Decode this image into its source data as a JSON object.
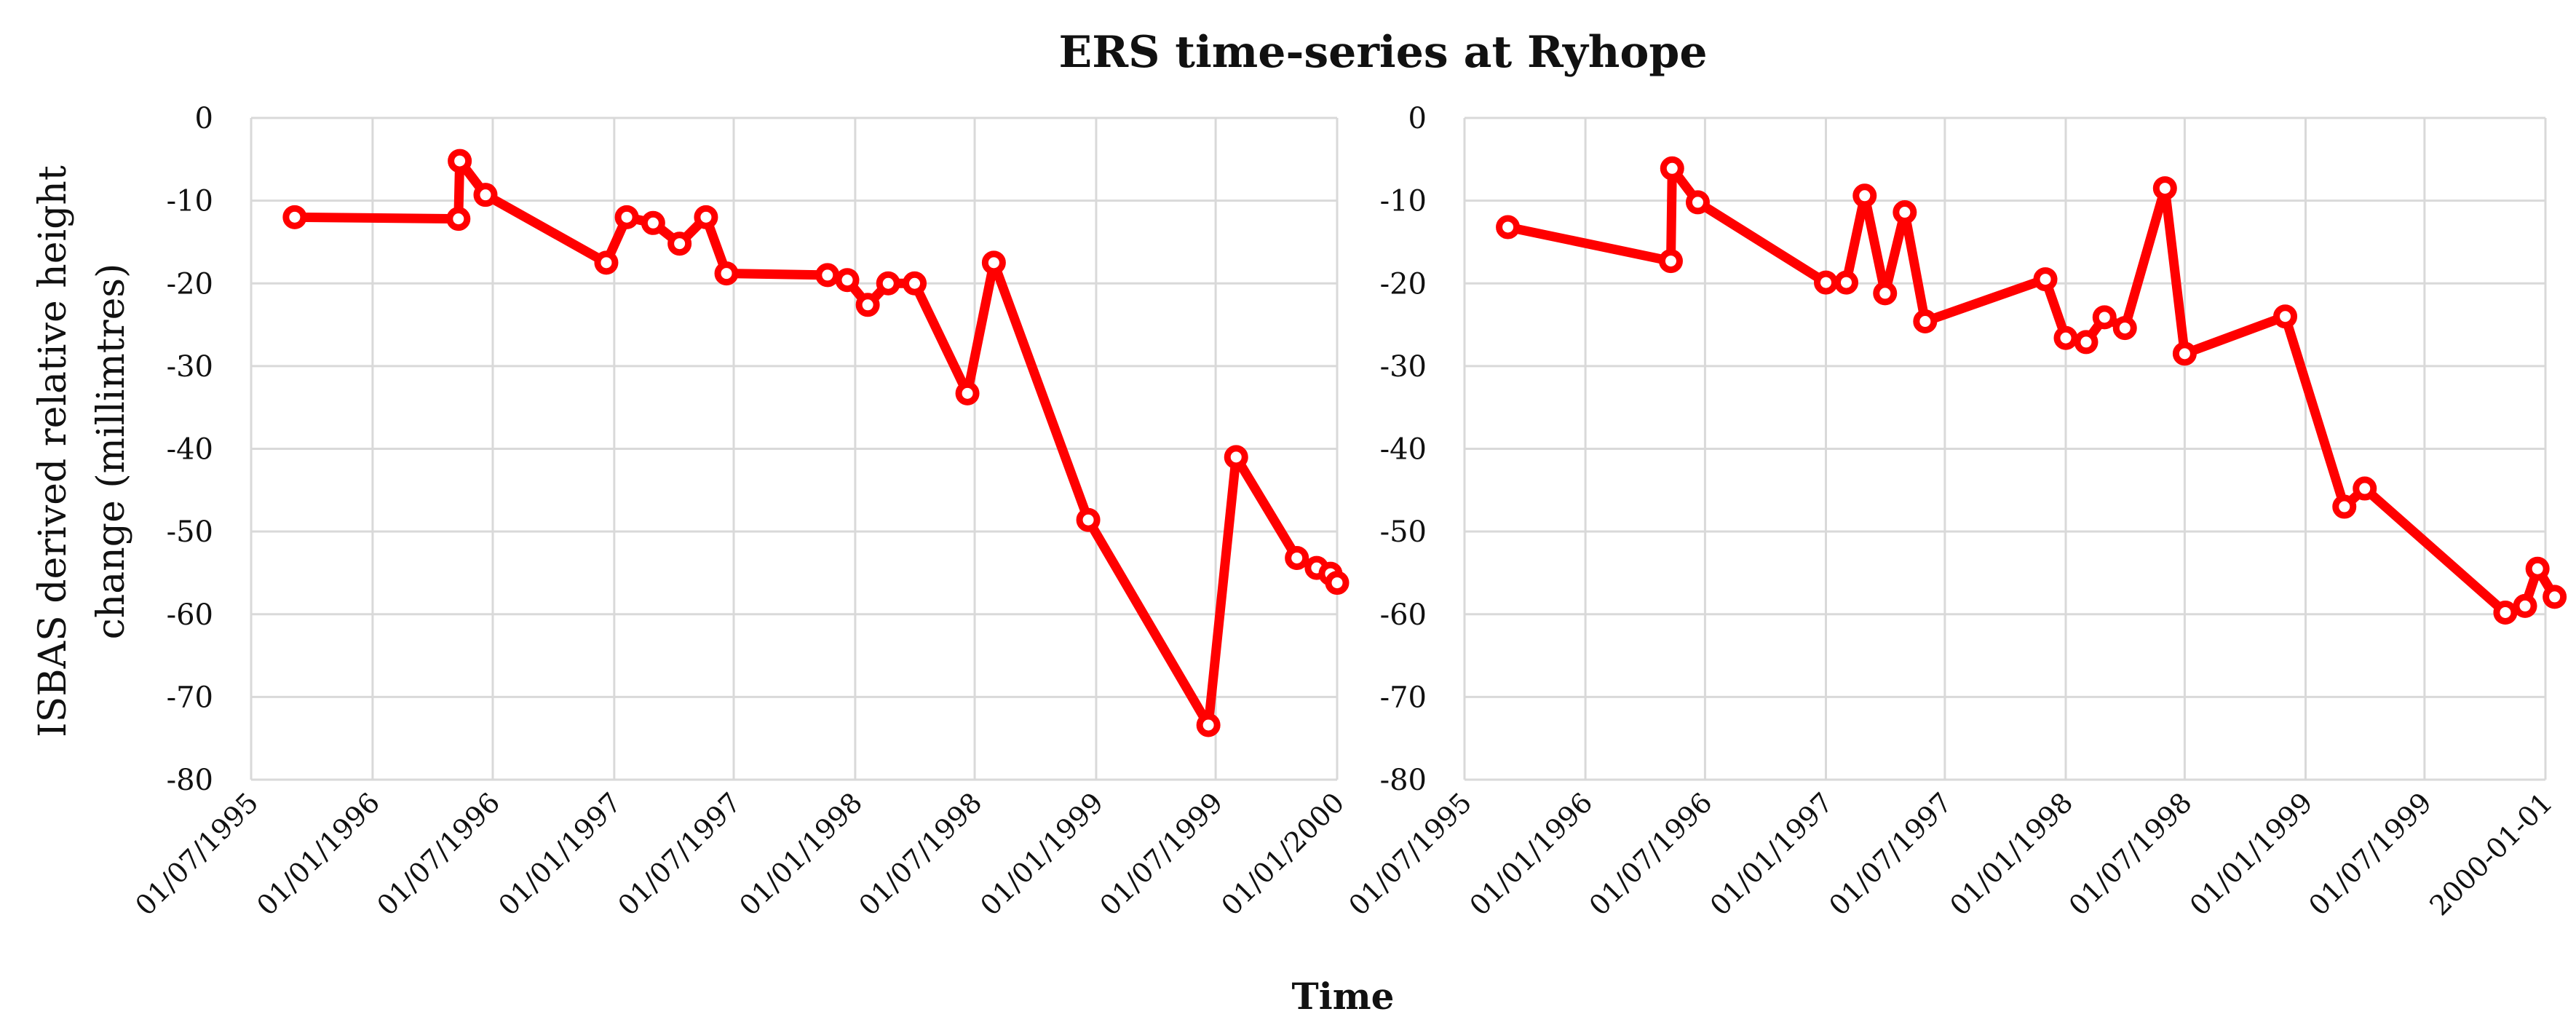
{
  "title": "ERS time-series at Ryhope",
  "xlabel": "Time",
  "ylabel_line1": "ISBAS derived relative height",
  "ylabel_line2": "change (millimtres)",
  "colors": {
    "series": "#ff0000",
    "grid": "#d9d9d9"
  },
  "chart_data": [
    {
      "type": "line",
      "xlabel": "Time",
      "ylabel": "ISBAS derived relative height change (millimtres)",
      "xlim": [
        "1995-07-01",
        "2000-01-01"
      ],
      "ylim": [
        -80,
        0
      ],
      "ytick_step": 10,
      "xticks": [
        "1995-07-01",
        "1996-01-01",
        "1996-07-01",
        "1997-01-01",
        "1997-07-01",
        "1998-01-01",
        "1998-07-01",
        "1999-01-01",
        "1999-07-01",
        "2000-01-01"
      ],
      "xtick_labels": [
        "01/07/1995",
        "01/01/1996",
        "01/07/1996",
        "01/01/1997",
        "01/07/1997",
        "01/01/1998",
        "01/07/1998",
        "01/01/1999",
        "01/07/1999",
        "01/01/2000"
      ],
      "grid": true,
      "series": [
        {
          "points": [
            [
              "1995-09-05",
              -12.0
            ],
            [
              "1996-05-10",
              -12.2
            ],
            [
              "1996-05-12",
              -5.2
            ],
            [
              "1996-06-20",
              -9.3
            ],
            [
              "1996-12-20",
              -17.5
            ],
            [
              "1997-01-20",
              -12.0
            ],
            [
              "1997-03-01",
              -12.7
            ],
            [
              "1997-04-10",
              -15.2
            ],
            [
              "1997-05-20",
              -12.0
            ],
            [
              "1997-06-20",
              -18.8
            ],
            [
              "1997-11-20",
              -19.0
            ],
            [
              "1997-12-20",
              -19.6
            ],
            [
              "1998-01-20",
              -22.6
            ],
            [
              "1998-02-20",
              -20.0
            ],
            [
              "1998-04-01",
              -20.0
            ],
            [
              "1998-06-20",
              -33.3
            ],
            [
              "1998-07-30",
              -17.5
            ],
            [
              "1998-12-20",
              -48.6
            ],
            [
              "1999-06-20",
              -73.4
            ],
            [
              "1999-08-01",
              -41.0
            ],
            [
              "1999-11-01",
              -53.2
            ],
            [
              "1999-12-01",
              -54.4
            ],
            [
              "1999-12-22",
              -55.1
            ],
            [
              "2000-01-01",
              -56.2
            ]
          ]
        }
      ]
    },
    {
      "type": "line",
      "xlabel": "Time",
      "ylabel": "",
      "xlim": [
        "1995-07-01",
        "2000-01-01"
      ],
      "ylim": [
        -80,
        0
      ],
      "ytick_step": 10,
      "xticks": [
        "1995-07-01",
        "1996-01-01",
        "1996-07-01",
        "1997-01-01",
        "1997-07-01",
        "1998-01-01",
        "1998-07-01",
        "1999-01-01",
        "1999-07-01",
        "2000-01-01"
      ],
      "xtick_labels": [
        "01/07/1995",
        "01/01/1996",
        "01/07/1996",
        "01/01/1997",
        "01/07/1997",
        "01/01/1998",
        "01/07/1998",
        "01/01/1999",
        "01/07/1999",
        "2000-01-01"
      ],
      "grid": true,
      "series": [
        {
          "points": [
            [
              "1995-09-05",
              -13.2
            ],
            [
              "1996-05-10",
              -17.3
            ],
            [
              "1996-05-12",
              -6.1
            ],
            [
              "1996-06-20",
              -10.2
            ],
            [
              "1997-01-01",
              -19.9
            ],
            [
              "1997-02-01",
              -19.9
            ],
            [
              "1997-03-01",
              -9.4
            ],
            [
              "1997-04-01",
              -21.2
            ],
            [
              "1997-05-01",
              -11.4
            ],
            [
              "1997-06-01",
              -24.6
            ],
            [
              "1997-12-01",
              -19.5
            ],
            [
              "1998-01-01",
              -26.6
            ],
            [
              "1998-02-01",
              -27.1
            ],
            [
              "1998-03-01",
              -24.1
            ],
            [
              "1998-04-01",
              -25.4
            ],
            [
              "1998-06-01",
              -8.5
            ],
            [
              "1998-07-01",
              -28.5
            ],
            [
              "1998-12-01",
              -24.0
            ],
            [
              "1999-03-01",
              -47.0
            ],
            [
              "1999-04-01",
              -44.8
            ],
            [
              "1999-11-01",
              -59.8
            ],
            [
              "1999-12-01",
              -59.0
            ],
            [
              "1999-12-20",
              -54.5
            ],
            [
              "2000-01-15",
              -57.9
            ]
          ]
        }
      ]
    }
  ]
}
